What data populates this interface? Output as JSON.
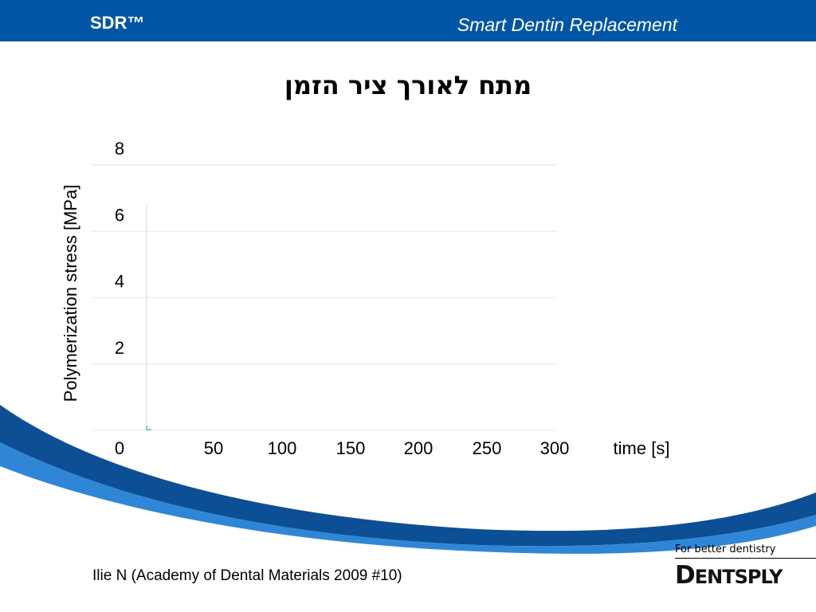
{
  "header": {
    "brand": "SDR™",
    "tagline": "Smart Dentin Replacement"
  },
  "slide": {
    "title": "מתח לאורך ציר הזמן",
    "citation": "Ilie N (Academy of Dental Materials 2009 #10)"
  },
  "footer": {
    "slogan": "For better dentistry",
    "logo_initial": "D",
    "logo_rest": "ENTSPLY"
  },
  "colors": {
    "header": "#0056a4",
    "swoosh_dark": "#0d4f95",
    "swoosh_light": "#2f86d6",
    "series": "#33aa33"
  },
  "chart_data": {
    "type": "line",
    "title": "מתח לאורך ציר הזמן",
    "xlabel": "time [s]",
    "ylabel": "Polymerization stress [MPa]",
    "x_ticks": [
      "0",
      "50",
      "100",
      "150",
      "200",
      "250",
      "300"
    ],
    "y_ticks": [
      "8",
      "6",
      "4",
      "2"
    ],
    "xlim": [
      0,
      300
    ],
    "ylim": [
      0,
      8
    ],
    "grid": "horizontal",
    "series": [
      {
        "x": [
          0,
          0
        ],
        "y": [
          0,
          0
        ]
      }
    ]
  }
}
